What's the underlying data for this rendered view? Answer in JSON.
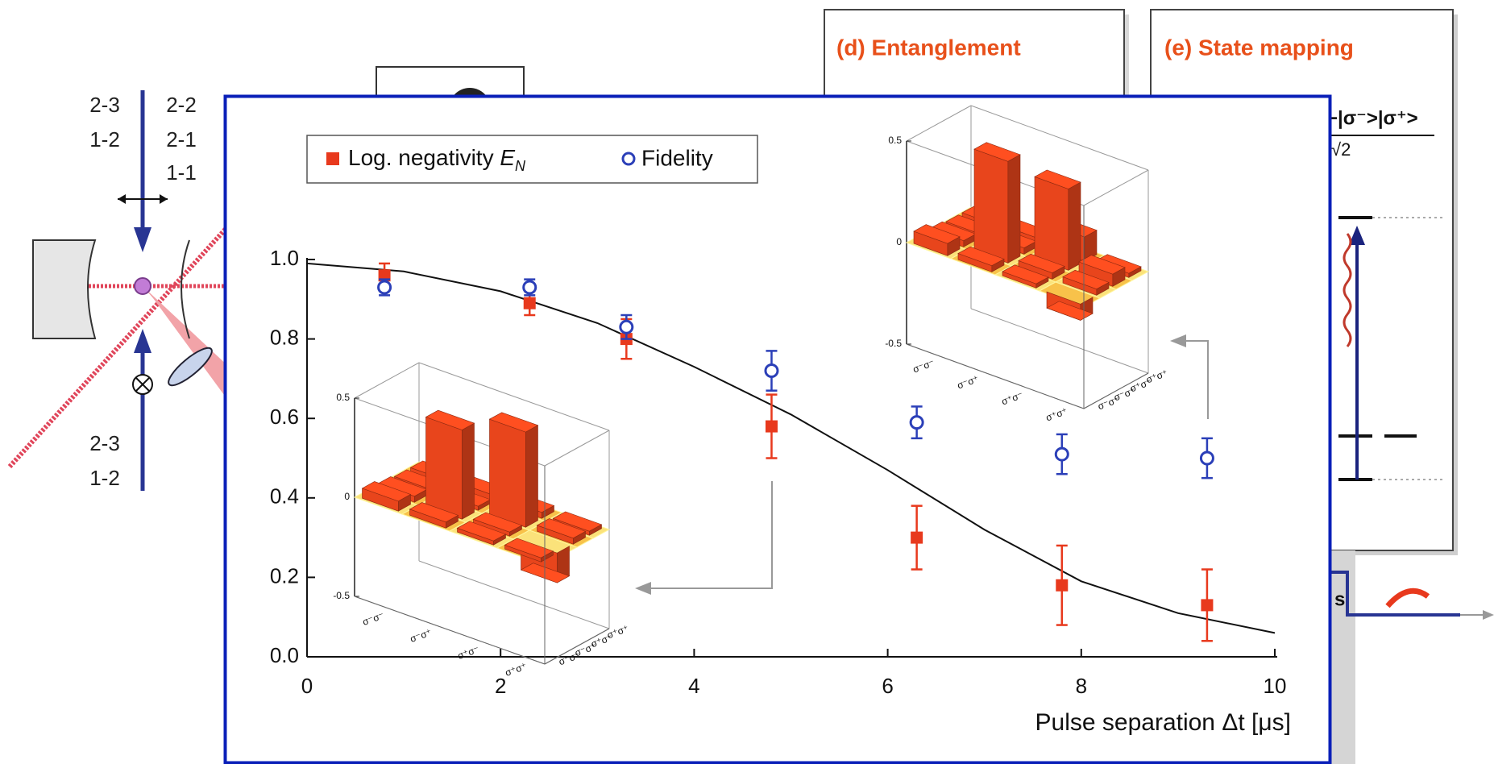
{
  "background": {
    "left_labels": [
      "2-3",
      "1-2",
      "2-2",
      "2-1",
      "1-1",
      "2-3",
      "1-2"
    ],
    "panel_d_title": "(d) Entanglement",
    "panel_e_title": "(e) State mapping",
    "panel_e_state": "−|σ⁻>|σ⁺>",
    "panel_e_norm": "√2",
    "lower_fragment": "s"
  },
  "chart_data": {
    "type": "scatter",
    "xlabel": "Pulse separation Δt [μs]",
    "xlim": [
      0,
      10
    ],
    "ylim": [
      0,
      1
    ],
    "xticks": [
      0,
      2,
      4,
      6,
      8,
      10
    ],
    "yticks": [
      {
        "value": 0,
        "label": "0.0"
      },
      0.2,
      0.4,
      0.6,
      0.8,
      {
        "value": 1,
        "label": "1.0"
      }
    ],
    "series": [
      {
        "name": "Log. negativity",
        "name_symbol": "E",
        "name_subscript": "N",
        "color": "#e8391d",
        "marker": "square",
        "x": [
          0.8,
          2.3,
          3.3,
          4.8,
          6.3,
          7.8,
          9.3
        ],
        "values": [
          0.96,
          0.89,
          0.8,
          0.58,
          0.3,
          0.18,
          0.13
        ],
        "errors": [
          0.03,
          0.03,
          0.05,
          0.08,
          0.08,
          0.1,
          0.09
        ]
      },
      {
        "name": "Fidelity",
        "color": "#2b3fb8",
        "marker": "circle",
        "x": [
          0.8,
          2.3,
          3.3,
          4.8,
          6.3,
          7.8,
          9.3
        ],
        "values": [
          0.93,
          0.93,
          0.83,
          0.72,
          0.59,
          0.51,
          0.5
        ],
        "errors": [
          0.02,
          0.02,
          0.03,
          0.05,
          0.04,
          0.05,
          0.05
        ]
      }
    ],
    "curve": {
      "color": "#111111",
      "x": [
        0,
        1,
        2,
        3,
        4,
        5,
        6,
        7,
        8,
        9,
        10
      ],
      "values": [
        0.99,
        0.97,
        0.92,
        0.84,
        0.73,
        0.61,
        0.47,
        0.32,
        0.19,
        0.11,
        0.06
      ]
    },
    "insets": [
      {
        "zlim": [
          -0.5,
          0.5
        ],
        "zticks": [
          0.5,
          0,
          -0.5
        ],
        "basis": [
          "σ⁻σ⁻",
          "σ⁻σ⁺",
          "σ⁺σ⁻",
          "σ⁺σ⁺"
        ],
        "values": [
          [
            0.05,
            0.03,
            0.02,
            0.02
          ],
          [
            0.03,
            0.45,
            0.02,
            0.03
          ],
          [
            0.02,
            0.02,
            0.48,
            0.03
          ],
          [
            0.02,
            -0.15,
            0.03,
            0.02
          ]
        ]
      },
      {
        "zlim": [
          -0.5,
          0.5
        ],
        "zticks": [
          0.5,
          0,
          -0.5
        ],
        "basis": [
          "σ⁻σ⁻",
          "σ⁻σ⁺",
          "σ⁺σ⁻",
          "σ⁺σ⁺"
        ],
        "values": [
          [
            0.06,
            0.03,
            0.02,
            0.02
          ],
          [
            0.03,
            0.5,
            0.03,
            0.03
          ],
          [
            0.02,
            0.03,
            0.4,
            0.12
          ],
          [
            -0.08,
            0.03,
            0.06,
            0.02
          ]
        ]
      }
    ]
  }
}
